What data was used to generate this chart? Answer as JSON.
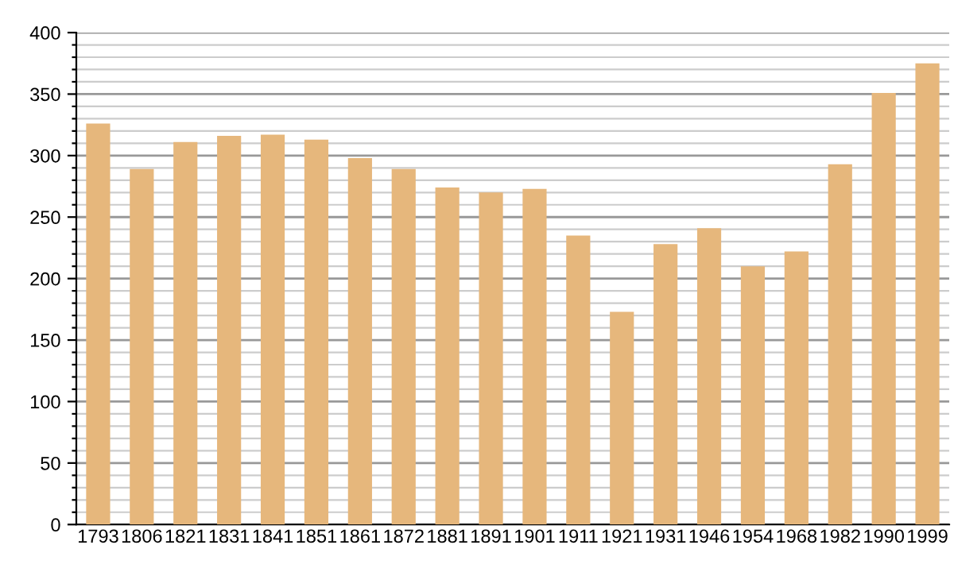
{
  "chart_data": {
    "type": "bar",
    "categories": [
      "1793",
      "1806",
      "1821",
      "1831",
      "1841",
      "1851",
      "1861",
      "1872",
      "1881",
      "1891",
      "1901",
      "1911",
      "1921",
      "1931",
      "1946",
      "1954",
      "1968",
      "1982",
      "1990",
      "1999"
    ],
    "values": [
      326,
      289,
      311,
      316,
      317,
      313,
      298,
      289,
      274,
      270,
      273,
      235,
      173,
      228,
      241,
      210,
      222,
      293,
      351,
      375
    ],
    "color": "#e6b77c",
    "ylim": [
      0,
      400
    ],
    "yticks": [
      0,
      {
        "value": 10,
        "label": null
      },
      {
        "value": 20,
        "label": null
      },
      {
        "value": 30,
        "label": null
      },
      {
        "value": 40,
        "label": null
      },
      50,
      {
        "value": 60,
        "label": null
      },
      {
        "value": 70,
        "label": null
      },
      {
        "value": 80,
        "label": null
      },
      {
        "value": 90,
        "label": null
      },
      100,
      {
        "value": 110,
        "label": null
      },
      {
        "value": 120,
        "label": null
      },
      {
        "value": 130,
        "label": null
      },
      {
        "value": 140,
        "label": null
      },
      150,
      {
        "value": 160,
        "label": null
      },
      {
        "value": 170,
        "label": null
      },
      {
        "value": 180,
        "label": null
      },
      {
        "value": 190,
        "label": null
      },
      200,
      {
        "value": 210,
        "label": null
      },
      {
        "value": 220,
        "label": null
      },
      {
        "value": 230,
        "label": null
      },
      {
        "value": 240,
        "label": null
      },
      250,
      {
        "value": 260,
        "label": null
      },
      {
        "value": 270,
        "label": null
      },
      {
        "value": 280,
        "label": null
      },
      {
        "value": 290,
        "label": null
      },
      300,
      {
        "value": 310,
        "label": null
      },
      {
        "value": 320,
        "label": null
      },
      {
        "value": 330,
        "label": null
      },
      {
        "value": 340,
        "label": null
      },
      350,
      {
        "value": 360,
        "label": null
      },
      {
        "value": 370,
        "label": null
      },
      {
        "value": 380,
        "label": null
      },
      {
        "value": 390,
        "label": null
      },
      400
    ],
    "grid": "y"
  }
}
